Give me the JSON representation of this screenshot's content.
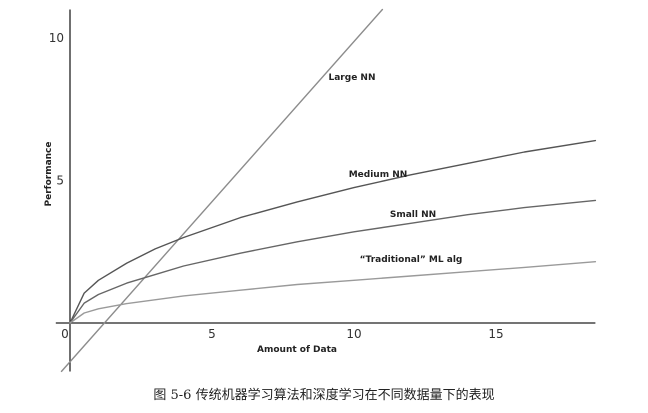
{
  "chart_data": {
    "type": "line",
    "xlabel": "Amount of Data",
    "ylabel": "Performance",
    "xlim": [
      -0.5,
      18.5
    ],
    "ylim": [
      -1.7,
      11
    ],
    "x_ticks": [
      0,
      5,
      10,
      15
    ],
    "y_ticks": [
      5,
      10
    ],
    "grid": false,
    "legend": "none",
    "series": [
      {
        "name": "Large NN",
        "color": "#8c8c8c",
        "x": [
          -0.3,
          11
        ],
        "y": [
          -1.7,
          11
        ]
      },
      {
        "name": "Medium NN",
        "color": "#555555",
        "x": [
          0,
          0.5,
          1,
          2,
          3,
          4,
          6,
          8,
          10,
          12,
          14,
          16,
          18.5
        ],
        "y": [
          0,
          1.05,
          1.5,
          2.1,
          2.6,
          3.0,
          3.7,
          4.25,
          4.75,
          5.2,
          5.6,
          6.0,
          6.4
        ]
      },
      {
        "name": "Small NN",
        "color": "#666666",
        "x": [
          0,
          0.5,
          1,
          2,
          3,
          4,
          6,
          8,
          10,
          12,
          14,
          16,
          18.5
        ],
        "y": [
          0,
          0.7,
          1.0,
          1.4,
          1.7,
          2.0,
          2.45,
          2.85,
          3.2,
          3.5,
          3.8,
          4.05,
          4.3
        ]
      },
      {
        "name": "“Traditional” ML alg",
        "color": "#9a9a9a",
        "x": [
          0,
          0.5,
          1,
          2,
          4,
          6,
          8,
          10,
          12,
          14,
          16,
          18.5
        ],
        "y": [
          0,
          0.35,
          0.5,
          0.68,
          0.95,
          1.15,
          1.35,
          1.5,
          1.65,
          1.8,
          1.95,
          2.15
        ]
      }
    ]
  },
  "caption": "图 5-6   传统机器学习算法和深度学习在不同数据量下的表现"
}
